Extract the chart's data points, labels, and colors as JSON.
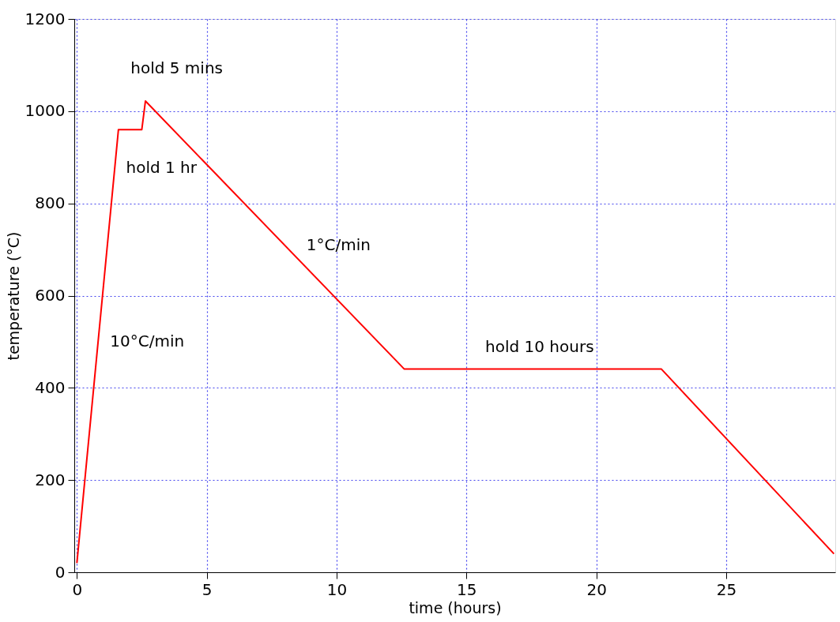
{
  "chart_data": {
    "type": "line",
    "xlabel": "time (hours)",
    "ylabel": "temperature (°C)",
    "xlim": [
      -0.1,
      29.2
    ],
    "ylim": [
      0,
      1200
    ],
    "xticks": [
      0,
      5,
      10,
      15,
      20,
      25
    ],
    "yticks": [
      0,
      200,
      400,
      600,
      800,
      1000,
      1200
    ],
    "grid": true,
    "marker": "none",
    "line_style": "solid",
    "series": [
      {
        "color": "#ff0000",
        "x": [
          0,
          1.6,
          2.5,
          2.64,
          12.6,
          22.5,
          29.15
        ],
        "values": [
          20,
          960,
          960,
          1022,
          441,
          441,
          40
        ]
      }
    ],
    "annotations": [
      "hold 5 mins",
      "hold 1 hr",
      "10°C/min",
      "1°C/min",
      "hold 10 hours"
    ]
  }
}
